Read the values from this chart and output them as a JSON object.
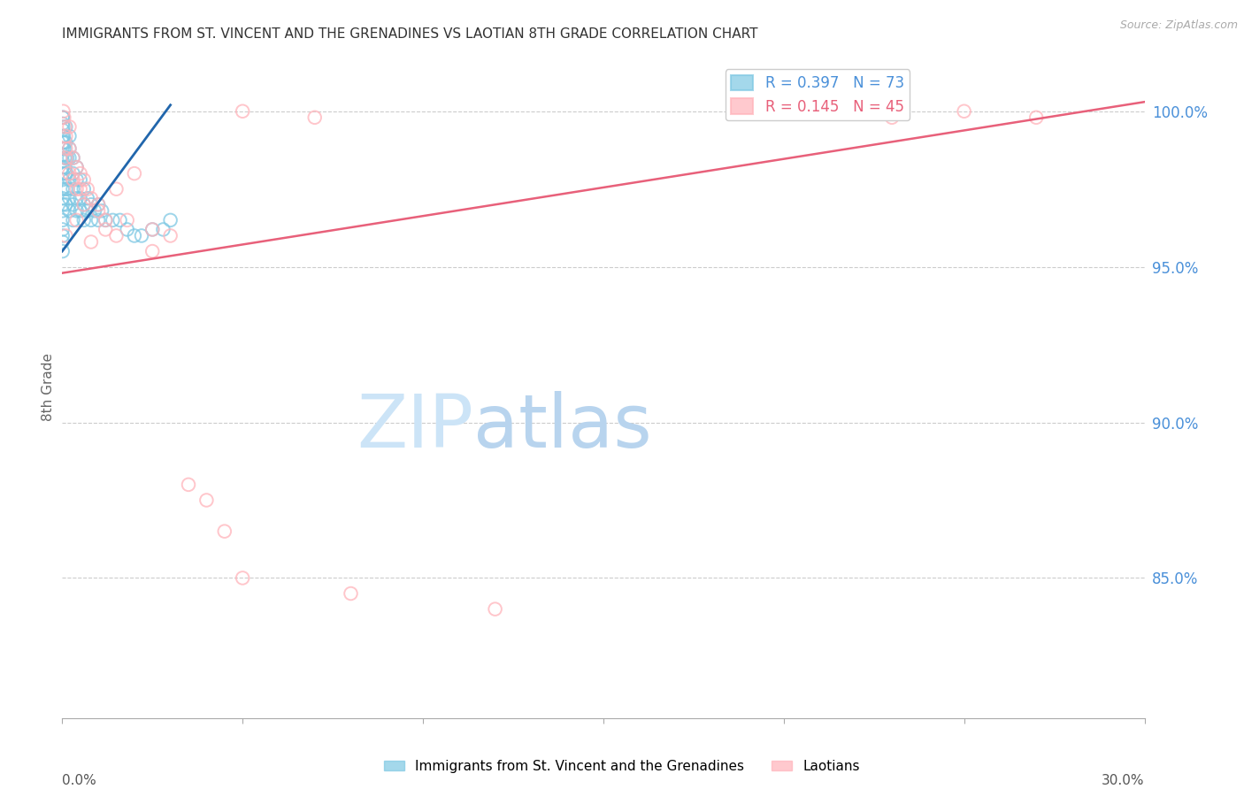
{
  "title": "IMMIGRANTS FROM ST. VINCENT AND THE GRENADINES VS LAOTIAN 8TH GRADE CORRELATION CHART",
  "source": "Source: ZipAtlas.com",
  "ylabel": "8th Grade",
  "ylabel_right_ticks": [
    100.0,
    95.0,
    90.0,
    85.0
  ],
  "legend1_label": "Immigrants from St. Vincent and the Grenadines",
  "legend2_label": "Laotians",
  "R1": 0.397,
  "N1": 73,
  "R2": 0.145,
  "N2": 45,
  "color1": "#7ec8e3",
  "color2": "#ffb3ba",
  "line1_color": "#2166ac",
  "line2_color": "#e8607a",
  "title_color": "#333333",
  "axis_label_color": "#666666",
  "right_tick_color": "#4a90d9",
  "watermark_zip_color": "#ddeeff",
  "watermark_atlas_color": "#c8dff5",
  "grid_color": "#cccccc",
  "xmin": 0.0,
  "xmax": 0.3,
  "ymin": 80.5,
  "ymax": 101.8,
  "blue_line_x": [
    0.0,
    0.03
  ],
  "blue_line_y": [
    95.5,
    100.2
  ],
  "pink_line_x": [
    0.0,
    0.3
  ],
  "pink_line_y": [
    94.8,
    100.3
  ],
  "blue_x": [
    0.0002,
    0.0003,
    0.0004,
    0.0005,
    0.0006,
    0.0007,
    0.0008,
    0.0009,
    0.001,
    0.001,
    0.001,
    0.001,
    0.001,
    0.0012,
    0.0014,
    0.0015,
    0.002,
    0.002,
    0.002,
    0.002,
    0.002,
    0.002,
    0.003,
    0.003,
    0.003,
    0.003,
    0.003,
    0.004,
    0.004,
    0.004,
    0.004,
    0.005,
    0.005,
    0.005,
    0.006,
    0.006,
    0.006,
    0.007,
    0.007,
    0.008,
    0.008,
    0.009,
    0.01,
    0.01,
    0.011,
    0.012,
    0.014,
    0.016,
    0.018,
    0.02,
    0.025,
    0.0001,
    0.0001,
    0.0001,
    0.0001,
    0.0001,
    0.0001,
    0.0001,
    0.0001,
    0.0001,
    0.0001,
    0.0001,
    0.0001,
    0.0001,
    0.0001,
    0.0001,
    0.0001,
    0.0001,
    0.0001,
    0.0001,
    0.0001,
    0.022,
    0.028,
    0.03
  ],
  "blue_y": [
    99.8,
    99.5,
    99.2,
    99.0,
    98.8,
    98.5,
    98.2,
    98.0,
    99.5,
    99.0,
    98.5,
    97.5,
    97.0,
    98.0,
    98.5,
    97.5,
    99.2,
    98.8,
    98.5,
    97.8,
    97.2,
    96.8,
    98.5,
    98.0,
    97.5,
    97.0,
    96.5,
    98.2,
    97.8,
    97.2,
    96.8,
    97.8,
    97.2,
    96.8,
    97.5,
    97.0,
    96.5,
    97.2,
    96.8,
    97.0,
    96.5,
    96.8,
    97.0,
    96.5,
    96.8,
    96.5,
    96.5,
    96.5,
    96.2,
    96.0,
    96.2,
    99.8,
    99.6,
    99.4,
    99.2,
    99.0,
    98.8,
    98.6,
    98.4,
    98.2,
    98.0,
    97.8,
    97.5,
    97.2,
    97.0,
    96.8,
    96.5,
    96.2,
    96.0,
    95.8,
    95.5,
    96.0,
    96.2,
    96.5
  ],
  "pink_x": [
    0.0003,
    0.0005,
    0.0008,
    0.001,
    0.001,
    0.001,
    0.002,
    0.002,
    0.002,
    0.003,
    0.003,
    0.004,
    0.004,
    0.005,
    0.005,
    0.006,
    0.006,
    0.007,
    0.008,
    0.01,
    0.01,
    0.012,
    0.015,
    0.015,
    0.018,
    0.02,
    0.025,
    0.03,
    0.05,
    0.07,
    0.22,
    0.23,
    0.25,
    0.27,
    0.001,
    0.004,
    0.008,
    0.012,
    0.025,
    0.04,
    0.035,
    0.045,
    0.05,
    0.08,
    0.12
  ],
  "pink_y": [
    100.0,
    99.8,
    99.5,
    99.2,
    98.8,
    98.5,
    99.5,
    98.8,
    98.0,
    98.5,
    97.8,
    98.2,
    97.5,
    98.0,
    97.5,
    97.8,
    97.0,
    97.5,
    97.2,
    97.0,
    96.8,
    96.5,
    97.5,
    96.0,
    96.5,
    98.0,
    96.2,
    96.0,
    100.0,
    99.8,
    100.0,
    99.8,
    100.0,
    99.8,
    96.0,
    96.5,
    95.8,
    96.2,
    95.5,
    87.5,
    88.0,
    86.5,
    85.0,
    84.5,
    84.0
  ]
}
